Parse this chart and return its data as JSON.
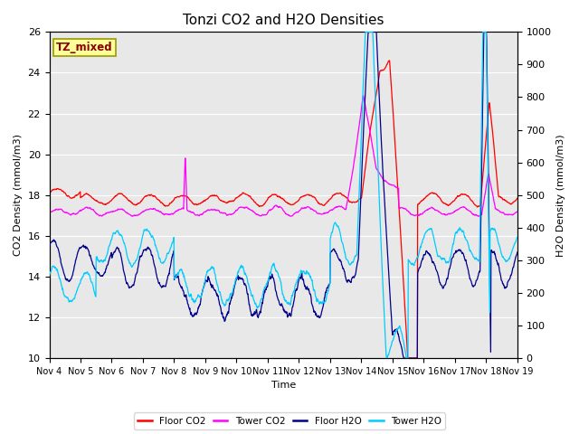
{
  "title": "Tonzi CO2 and H2O Densities",
  "xlabel": "Time",
  "ylabel_left": "CO2 Density (mmol/m3)",
  "ylabel_right": "H2O Density (mmol/m3)",
  "annotation_text": "TZ_mixed",
  "annotation_color": "#8B0000",
  "annotation_bg": "#FFFF99",
  "annotation_border": "#999900",
  "xlim": [
    0,
    15
  ],
  "ylim_left": [
    10,
    26
  ],
  "ylim_right": [
    0,
    1000
  ],
  "xtick_labels": [
    "Nov 4",
    "Nov 5",
    "Nov 6",
    "Nov 7",
    "Nov 8",
    "Nov 9",
    "Nov 10",
    "Nov 11",
    "Nov 12",
    "Nov 13",
    "Nov 14",
    "Nov 15",
    "Nov 16",
    "Nov 17",
    "Nov 18",
    "Nov 19"
  ],
  "legend_labels": [
    "Floor CO2",
    "Tower CO2",
    "Floor H2O",
    "Tower H2O"
  ],
  "legend_colors": [
    "#FF0000",
    "#FF00FF",
    "#00008B",
    "#00CCFF"
  ],
  "bg_color": "#E8E8E8",
  "grid_color": "#FFFFFF",
  "title_fontsize": 11,
  "label_fontsize": 8,
  "tick_fontsize": 8
}
